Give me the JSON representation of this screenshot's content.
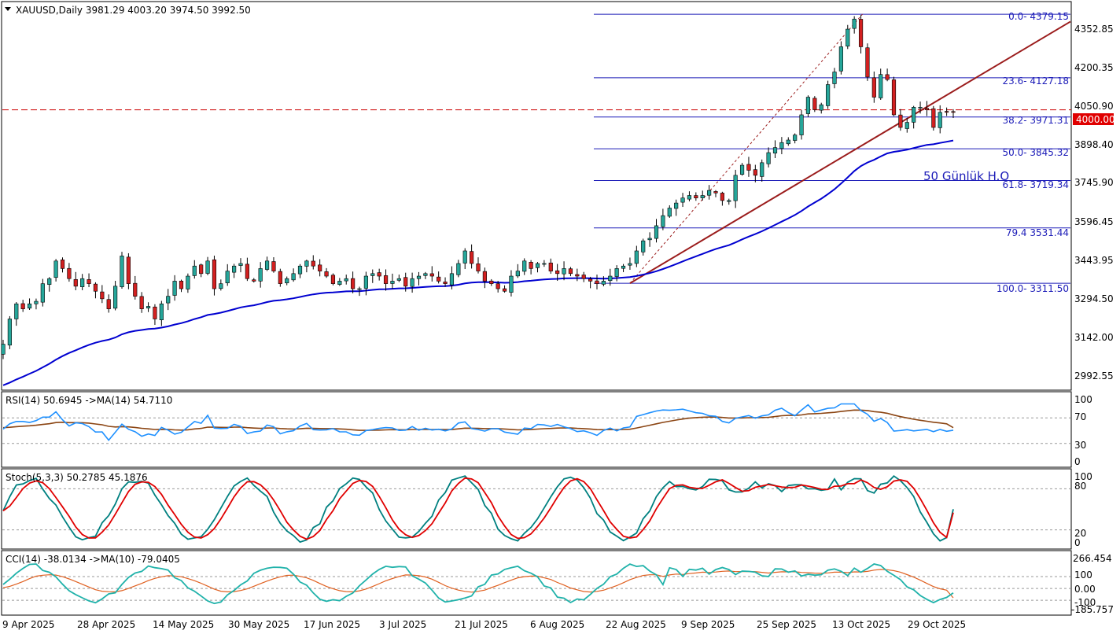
{
  "symbol_header": "XAUUSD,Daily  3981.29 4003.20 3974.50 3992.50",
  "current_price_tag": "4000.00",
  "annotation": "50 Günlük H.O",
  "colors": {
    "bull": "#26a69a",
    "bear": "#d32020",
    "ma50": "#0000d0",
    "trendline": "#9b1c1c",
    "fib": "#1c1cb8",
    "price_line": "#cc0000",
    "rsi": "#1e90ff",
    "rsi_ma": "#8b4513",
    "stoch_k": "#008080",
    "stoch_d": "#e00000",
    "cci": "#20b2aa",
    "cci_ma": "#e06020"
  },
  "x_axis_labels": [
    "9 Apr 2025",
    "28 Apr 2025",
    "14 May 2025",
    "30 May 2025",
    "17 Jun 2025",
    "3 Jul 2025",
    "21 Jul 2025",
    "6 Aug 2025",
    "22 Aug 2025",
    "9 Sep 2025",
    "25 Sep 2025",
    "13 Oct 2025",
    "29 Oct 2025"
  ],
  "price_axis_labels": [
    "4352.85",
    "4200.35",
    "4050.90",
    "3898.40",
    "3745.90",
    "3596.45",
    "3443.95",
    "3294.50",
    "3142.00",
    "2992.55"
  ],
  "fib_labels": [
    "0.0- 4379.15",
    "23.6- 4127.18",
    "38.2- 3971.31",
    "50.0- 3845.32",
    "61.8- 3719.34",
    "79.4 3531.44",
    "100.0- 3311.50"
  ],
  "rsi_header": "RSI(14) 50.6945  ->MA(14) 54.7110",
  "rsi_axis_labels": [
    "100",
    "70",
    "30",
    "0"
  ],
  "stoch_header": "Stoch(5,3,3) 50.2785 45.1876",
  "stoch_axis_labels": [
    "100",
    "80",
    "20",
    "0"
  ],
  "cci_header": "CCI(14) -38.0134  ->MA(10) -79.0405",
  "cci_axis_labels": [
    "266.454",
    "100",
    "0.00",
    "-100",
    "-185.757"
  ],
  "chart_data": {
    "type": "candlestick",
    "title": "XAUUSD,Daily",
    "ohlc_last": {
      "open": 3981.29,
      "high": 4003.2,
      "low": 3974.5,
      "close": 3992.5
    },
    "ylim": [
      2900,
      4420
    ],
    "x_ticks": [
      "9 Apr 2025",
      "28 Apr 2025",
      "14 May 2025",
      "30 May 2025",
      "17 Jun 2025",
      "3 Jul 2025",
      "21 Jul 2025",
      "6 Aug 2025",
      "22 Aug 2025",
      "9 Sep 2025",
      "25 Sep 2025",
      "13 Oct 2025",
      "29 Oct 2025"
    ],
    "closes": [
      3070,
      3170,
      3230,
      3210,
      3230,
      3240,
      3310,
      3330,
      3400,
      3370,
      3330,
      3300,
      3330,
      3310,
      3280,
      3250,
      3210,
      3300,
      3420,
      3310,
      3260,
      3210,
      3220,
      3170,
      3230,
      3260,
      3320,
      3290,
      3340,
      3380,
      3350,
      3400,
      3290,
      3310,
      3360,
      3380,
      3390,
      3330,
      3320,
      3370,
      3400,
      3360,
      3310,
      3330,
      3350,
      3380,
      3400,
      3380,
      3360,
      3340,
      3310,
      3320,
      3330,
      3290,
      3290,
      3340,
      3350,
      3340,
      3310,
      3320,
      3330,
      3300,
      3330,
      3340,
      3350,
      3340,
      3320,
      3310,
      3350,
      3390,
      3440,
      3390,
      3360,
      3320,
      3310,
      3290,
      3280,
      3340,
      3360,
      3400,
      3370,
      3390,
      3390,
      3360,
      3350,
      3370,
      3350,
      3340,
      3330,
      3320,
      3310,
      3320,
      3340,
      3370,
      3380,
      3390,
      3440,
      3480,
      3490,
      3540,
      3580,
      3610,
      3630,
      3650,
      3660,
      3650,
      3660,
      3680,
      3670,
      3640,
      3640,
      3740,
      3780,
      3760,
      3740,
      3790,
      3830,
      3850,
      3870,
      3880,
      3900,
      3980,
      4050,
      4000,
      4020,
      4100,
      4150,
      4250,
      4320,
      4360,
      4250,
      4130,
      4050,
      4140,
      4120,
      3980,
      3930,
      3950,
      4010,
      4010,
      4000,
      3930,
      3990,
      3990,
      3992.5
    ],
    "ma50_start": 2900,
    "fib_levels": [
      4379.15,
      4127.18,
      3971.31,
      3845.32,
      3719.34,
      3531.44,
      3311.5
    ],
    "price_line": 4000.0,
    "rsi": {
      "value": 50.6945,
      "ma": 54.711,
      "ylim": [
        0,
        100
      ],
      "levels": [
        70,
        30
      ]
    },
    "stoch": {
      "k": 50.2785,
      "d": 45.1876,
      "ylim": [
        0,
        100
      ],
      "levels": [
        80,
        20
      ]
    },
    "cci": {
      "value": -38.0134,
      "ma": -79.0405,
      "ylim": [
        -185.757,
        266.454
      ],
      "levels": [
        100,
        0,
        -100
      ]
    }
  }
}
